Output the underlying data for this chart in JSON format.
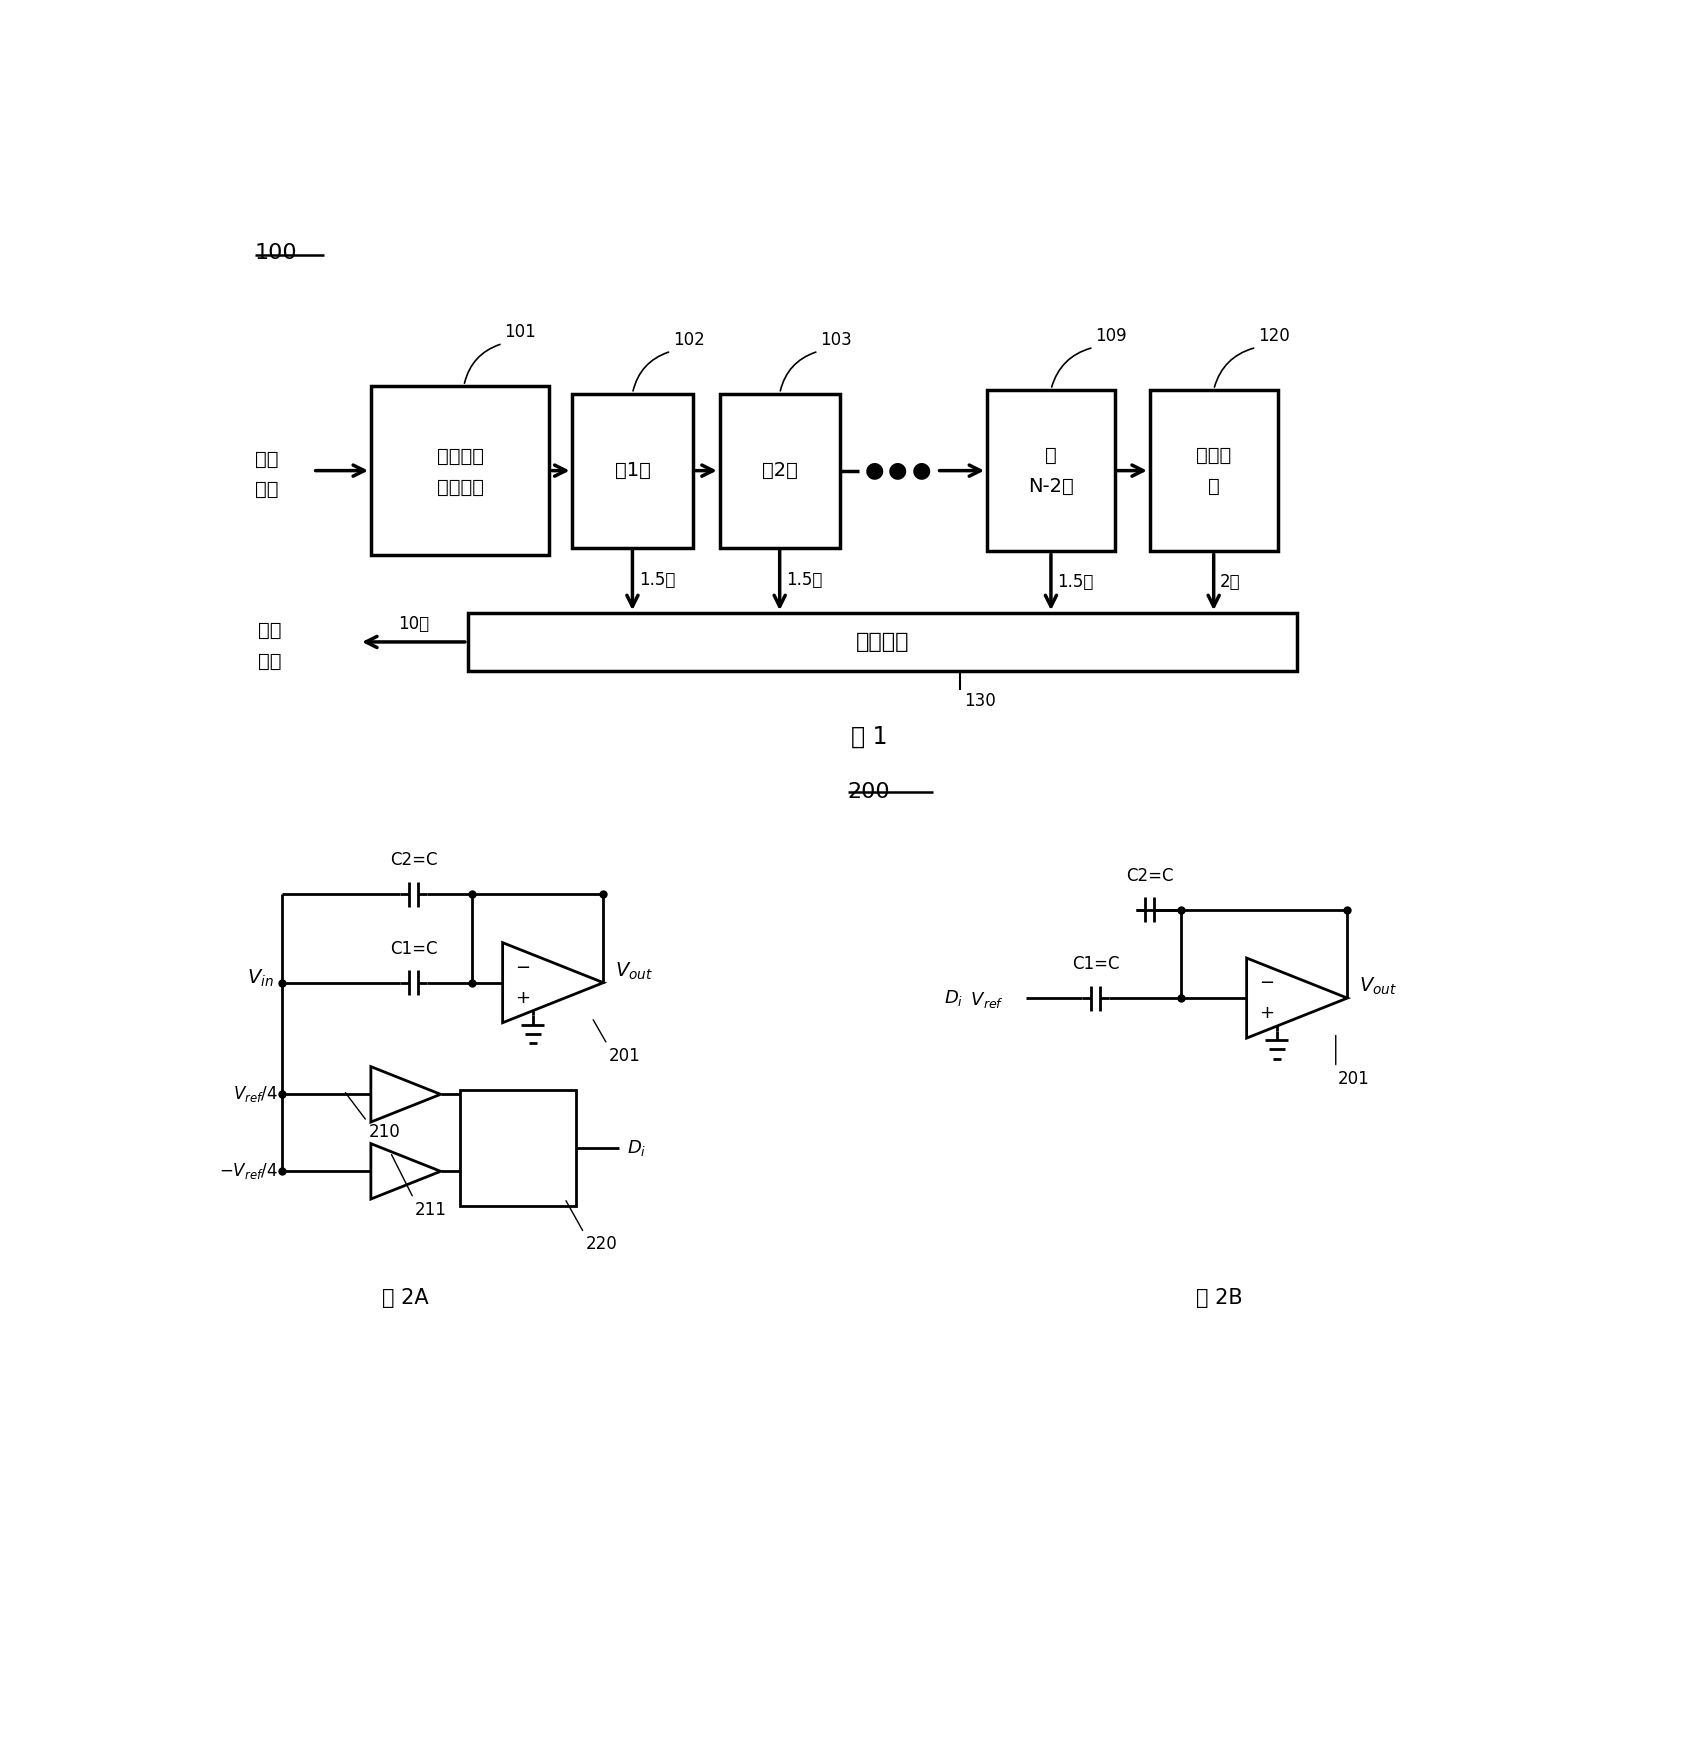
{
  "fig_width": 16.96,
  "fig_height": 17.53,
  "bg_color": "#ffffff",
  "label_100": "100",
  "label_200": "200",
  "fig1_title": "图 1",
  "fig2a_title": "图 2A",
  "fig2b_title": "图 2B",
  "box_101_line1": "采样保持",
  "box_101_line2": "（可选）",
  "box_102_text": "第1级",
  "box_103_text": "第2级",
  "box_109_line1": "第",
  "box_109_line2": "N-2级",
  "box_120_line1": "全并行",
  "box_120_line2": "级",
  "box_130_text": "数字校正",
  "analog_line1": "模拟",
  "analog_line2": "输入",
  "digital_line1": "数字",
  "digital_line2": "输出",
  "bits_15": "1.5位",
  "bits_2": "2位",
  "bits_10": "10位",
  "ref_101": "101",
  "ref_102": "102",
  "ref_103": "103",
  "ref_109": "109",
  "ref_120": "120",
  "ref_130": "130",
  "c1c_label": "C1=C",
  "c2c_label": "C2=C",
  "ref_201": "201",
  "ref_210": "210",
  "ref_211": "211",
  "ref_220": "220"
}
